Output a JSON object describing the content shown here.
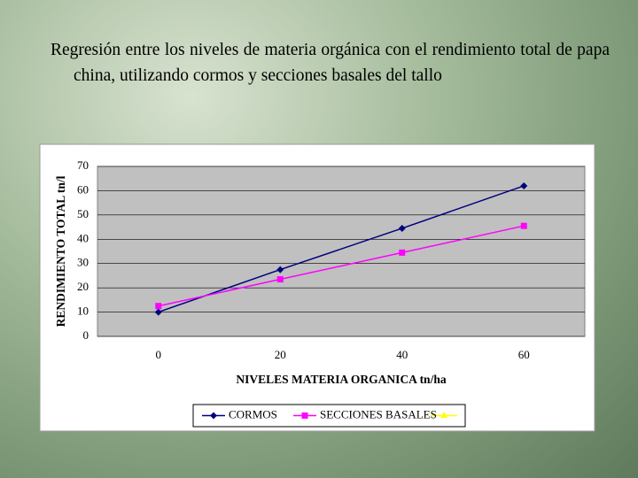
{
  "title": "Regresión entre los niveles de materia orgánica con el rendimiento total de papa china, utilizando cormos y secciones basales del tallo",
  "chart_data": {
    "type": "line",
    "ylabel": "RENDIMIENTO TOTAL tn/l",
    "xlabel": "NIVELES MATERIA ORGANICA tn/ha",
    "x": [
      0,
      20,
      40,
      60
    ],
    "xlim": [
      -10,
      70
    ],
    "xticks": [
      0,
      20,
      40,
      60
    ],
    "ylim": [
      0,
      70
    ],
    "yticks": [
      0,
      10,
      20,
      30,
      40,
      50,
      60,
      70
    ],
    "grid": true,
    "legend": "bottom",
    "series": [
      {
        "name": "CORMOS",
        "color": "#000080",
        "marker": "diamond",
        "values": [
          10,
          27.5,
          44.5,
          62
        ]
      },
      {
        "name": "SECCIONES BASALES",
        "color": "#ff00ff",
        "marker": "square",
        "values": [
          12.5,
          23.5,
          34.5,
          45.5
        ]
      }
    ]
  }
}
